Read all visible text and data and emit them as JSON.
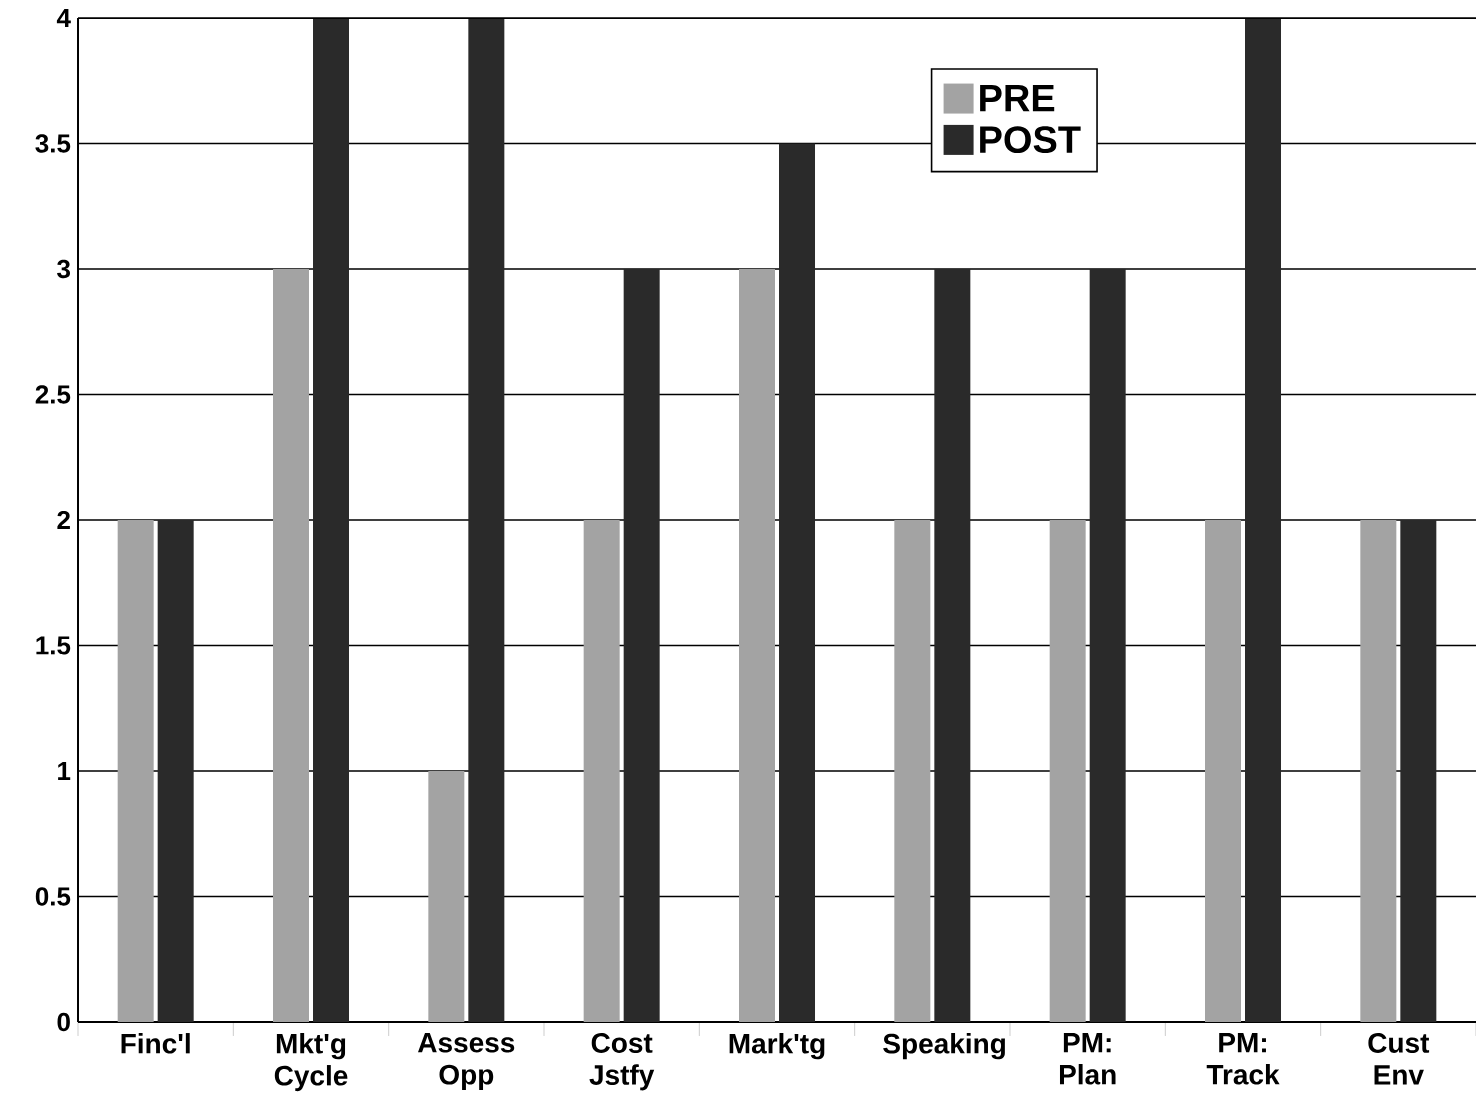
{
  "chart_data": {
    "type": "bar",
    "categories": [
      "Finc'l",
      "Mkt'g Cycle",
      "Assess Opp",
      "Cost Jstfy",
      "Mark'tg",
      "Speaking",
      "PM: Plan",
      "PM: Track",
      "Cust Env"
    ],
    "series": [
      {
        "name": "PRE",
        "color": "#a3a3a3",
        "values": [
          2,
          3,
          1,
          2,
          3,
          2,
          2,
          2,
          2
        ]
      },
      {
        "name": "POST",
        "color": "#2a2a2a",
        "values": [
          2,
          4,
          4,
          3,
          3.5,
          3,
          3,
          4,
          2
        ]
      }
    ],
    "ylim": [
      0,
      4
    ],
    "yticks": [
      0,
      0.5,
      1,
      1.5,
      2,
      2.5,
      3,
      3.5,
      4
    ],
    "grid": "y",
    "legend": "top right"
  }
}
